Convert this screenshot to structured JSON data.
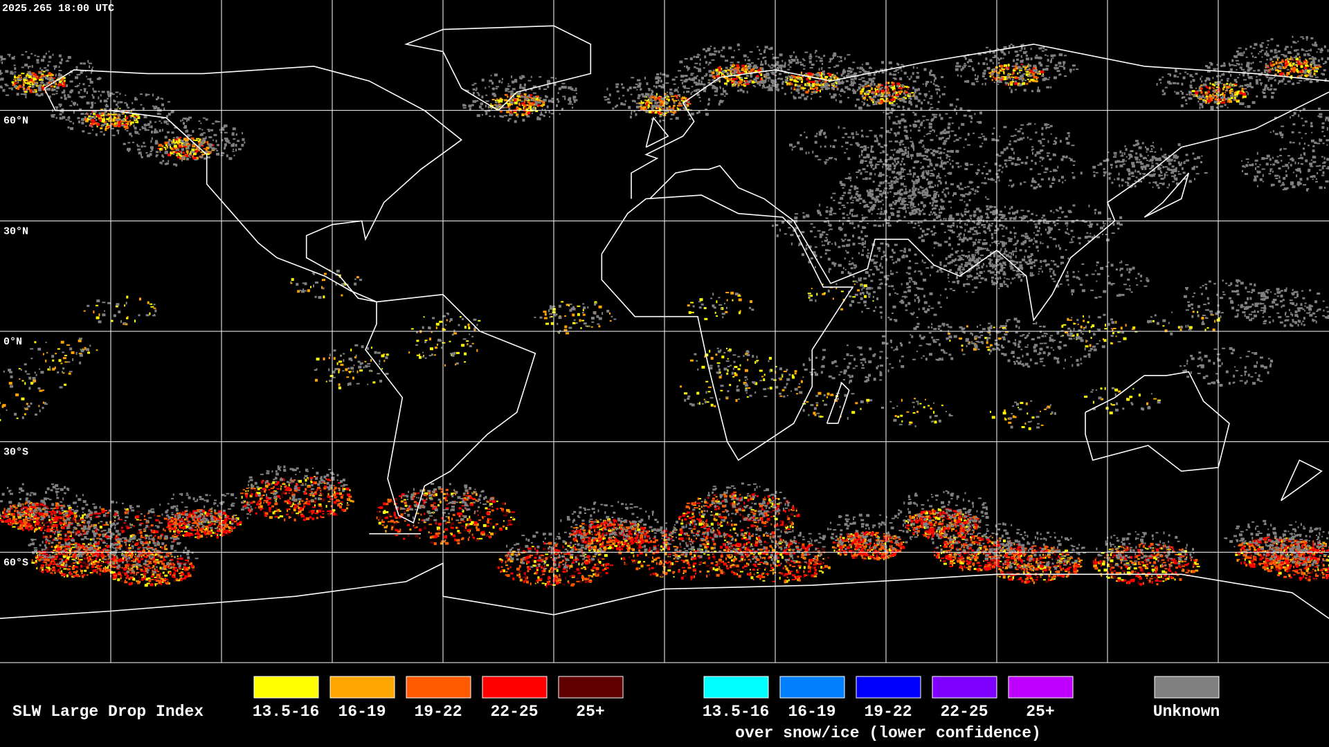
{
  "timestamp": "2025.265 18:00 UTC",
  "lat_labels": [
    "60°N",
    "30°N",
    "0°N",
    "30°S",
    "60°S"
  ],
  "legend": {
    "title": "SLW Large Drop Index",
    "liquid": [
      {
        "label": "13.5-16",
        "color": "#ffff00"
      },
      {
        "label": "16-19",
        "color": "#ffa500"
      },
      {
        "label": "19-22",
        "color": "#ff5a00"
      },
      {
        "label": "22-25",
        "color": "#ff0000"
      },
      {
        "label": "25+",
        "color": "#600000"
      }
    ],
    "over_snow_ice": {
      "note": "over snow/ice (lower confidence)",
      "items": [
        {
          "label": "13.5-16",
          "color": "#00ffff"
        },
        {
          "label": "16-19",
          "color": "#0080ff"
        },
        {
          "label": "19-22",
          "color": "#0000ff"
        },
        {
          "label": "22-25",
          "color": "#8000ff"
        },
        {
          "label": "25+",
          "color": "#c000ff"
        }
      ]
    },
    "unknown": {
      "label": "Unknown",
      "color": "#808080"
    }
  }
}
